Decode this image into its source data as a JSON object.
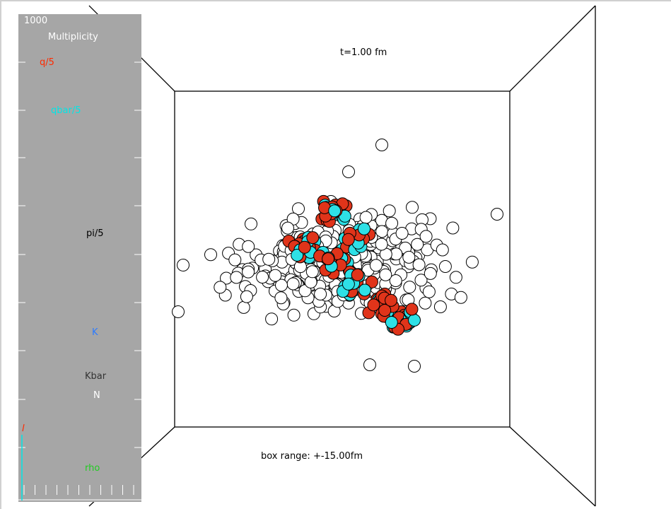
{
  "scene": {
    "time_label": "t=1.00 fm",
    "range_label": "box range: +-15.00fm"
  },
  "panel": {
    "scale_value": "1000",
    "title": "Multiplicity",
    "legend": {
      "q": "q/5",
      "qbar": "qbar/5",
      "pi": "pi/5",
      "K": "K",
      "Kbar": "Kbar",
      "N": "N",
      "rho": "rho"
    },
    "colors": {
      "background": "#a6a6a6",
      "q": "#ff2a00",
      "qbar": "#00e6e6",
      "pi": "#000000",
      "K": "#2b7bff",
      "Kbar": "#333333",
      "N": "#ffffff",
      "rho": "#22cc22"
    }
  },
  "particles": {
    "colors": {
      "quark": "#e0341a",
      "antiquark": "#2ee0e6",
      "pion": "#ffffff",
      "outline": "#000000"
    }
  }
}
